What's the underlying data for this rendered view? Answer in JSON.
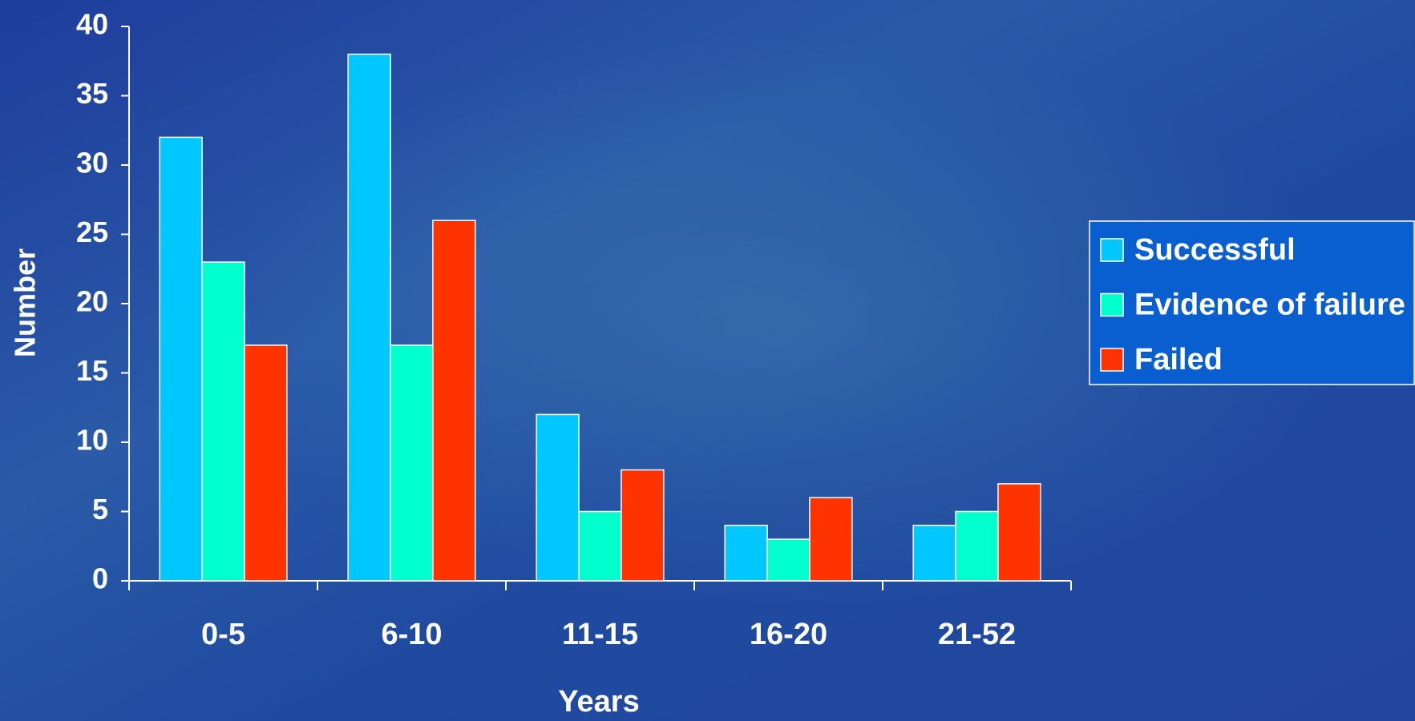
{
  "chart_data": {
    "type": "bar",
    "x_label": "Years",
    "y_label": "Number",
    "categories": [
      "0-5",
      "6-10",
      "11-15",
      "16-20",
      "21-52"
    ],
    "series": [
      {
        "name": "Successful",
        "color": "#00c8ff",
        "values": [
          32,
          38,
          12,
          4,
          4
        ]
      },
      {
        "name": "Evidence of failure",
        "color": "#00ffcc",
        "values": [
          23,
          17,
          5,
          3,
          5
        ]
      },
      {
        "name": "Failed",
        "color": "#ff3300",
        "values": [
          17,
          26,
          8,
          6,
          7
        ]
      }
    ],
    "ylim": [
      0,
      40
    ],
    "yticks": [
      0,
      5,
      10,
      15,
      20,
      25,
      30,
      35,
      40
    ],
    "legend": "right"
  }
}
